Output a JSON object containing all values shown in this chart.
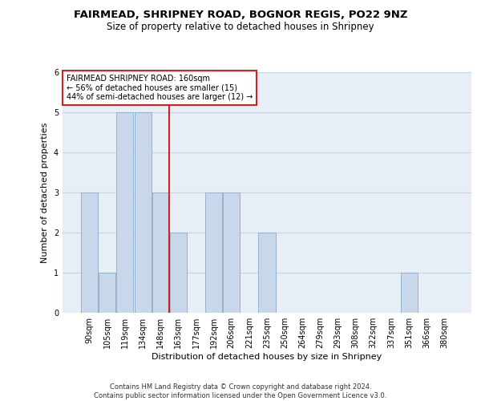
{
  "title_line1": "FAIRMEAD, SHRIPNEY ROAD, BOGNOR REGIS, PO22 9NZ",
  "title_line2": "Size of property relative to detached houses in Shripney",
  "xlabel": "Distribution of detached houses by size in Shripney",
  "ylabel": "Number of detached properties",
  "categories": [
    "90sqm",
    "105sqm",
    "119sqm",
    "134sqm",
    "148sqm",
    "163sqm",
    "177sqm",
    "192sqm",
    "206sqm",
    "221sqm",
    "235sqm",
    "250sqm",
    "264sqm",
    "279sqm",
    "293sqm",
    "308sqm",
    "322sqm",
    "337sqm",
    "351sqm",
    "366sqm",
    "380sqm"
  ],
  "values": [
    3,
    1,
    5,
    5,
    3,
    2,
    0,
    3,
    3,
    0,
    2,
    0,
    0,
    0,
    0,
    0,
    0,
    0,
    1,
    0,
    0
  ],
  "bar_color": "#c8d8ea",
  "bar_edgecolor": "#8aaac8",
  "vline_index": 5,
  "vline_color": "#cc2222",
  "annotation_text": "FAIRMEAD SHRIPNEY ROAD: 160sqm\n← 56% of detached houses are smaller (15)\n44% of semi-detached houses are larger (12) →",
  "annotation_box_edgecolor": "#cc2222",
  "annotation_box_facecolor": "#ffffff",
  "ylim": [
    0,
    6
  ],
  "yticks": [
    0,
    1,
    2,
    3,
    4,
    5,
    6
  ],
  "grid_color": "#c8d4e4",
  "plot_background": "#e8eef6",
  "footer_line1": "Contains HM Land Registry data © Crown copyright and database right 2024.",
  "footer_line2": "Contains public sector information licensed under the Open Government Licence v3.0.",
  "title_fontsize": 9.5,
  "subtitle_fontsize": 8.5,
  "axis_label_fontsize": 8,
  "tick_fontsize": 7,
  "annotation_fontsize": 7,
  "footer_fontsize": 6
}
